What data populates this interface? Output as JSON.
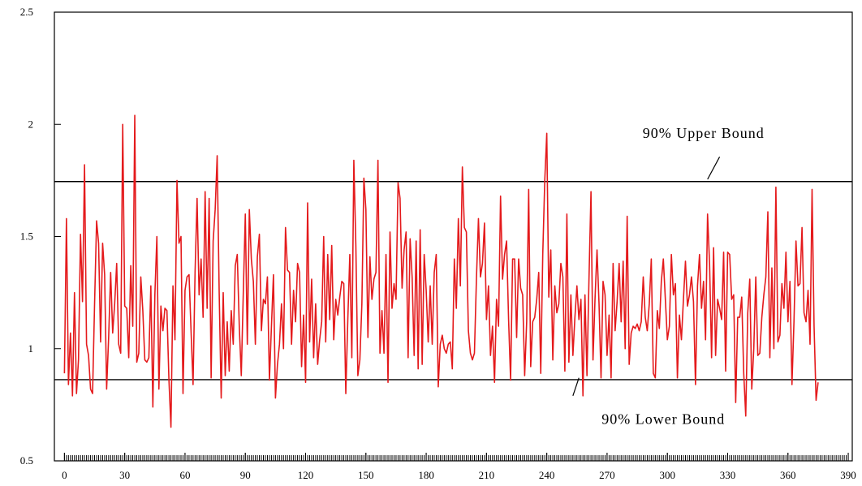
{
  "chart_data": {
    "type": "line",
    "title": "",
    "xlabel": "",
    "ylabel": "",
    "xlim": [
      -5,
      392
    ],
    "ylim": [
      0.5,
      2.5
    ],
    "x_ticks": [
      "0",
      "30",
      "60",
      "90",
      "120",
      "150",
      "180",
      "210",
      "240",
      "270",
      "300",
      "330",
      "360",
      "390"
    ],
    "y_ticks": [
      "0.5",
      "1",
      "1.5",
      "2",
      "2.5"
    ],
    "grid": false,
    "legend": "none",
    "series": [
      {
        "color": "#e41a1c",
        "x_start": 0,
        "x_step": 1,
        "values": [
          0.89,
          1.58,
          0.84,
          1.07,
          0.79,
          1.25,
          0.8,
          0.95,
          1.51,
          1.21,
          1.82,
          1.02,
          0.97,
          0.82,
          0.8,
          1.2,
          1.57,
          1.47,
          1.03,
          1.47,
          1.33,
          0.82,
          1.05,
          1.34,
          1.07,
          1.2,
          1.38,
          1.02,
          0.98,
          2.0,
          1.19,
          1.18,
          0.96,
          1.37,
          1.1,
          2.04,
          0.94,
          0.98,
          1.32,
          1.17,
          0.95,
          0.94,
          0.96,
          1.28,
          0.74,
          1.24,
          1.5,
          0.82,
          1.19,
          1.08,
          1.18,
          1.17,
          0.86,
          0.65,
          1.28,
          1.04,
          1.75,
          1.47,
          1.5,
          0.8,
          1.26,
          1.32,
          1.33,
          1.08,
          0.84,
          1.34,
          1.67,
          1.24,
          1.4,
          1.14,
          1.7,
          1.18,
          1.67,
          0.87,
          1.48,
          1.62,
          1.86,
          1.25,
          0.78,
          1.25,
          0.88,
          1.12,
          0.9,
          1.17,
          1.02,
          1.37,
          1.42,
          1.1,
          0.88,
          1.25,
          1.6,
          1.02,
          1.62,
          1.4,
          1.3,
          1.02,
          1.41,
          1.51,
          1.08,
          1.22,
          1.2,
          1.32,
          0.86,
          1.1,
          1.33,
          0.78,
          0.93,
          1.02,
          1.2,
          1.0,
          1.54,
          1.35,
          1.34,
          1.02,
          1.26,
          1.12,
          1.38,
          1.34,
          0.92,
          1.15,
          0.85,
          1.65,
          1.03,
          1.31,
          0.96,
          1.2,
          0.93,
          1.04,
          1.12,
          1.5,
          1.03,
          1.42,
          1.13,
          1.46,
          1.04,
          1.22,
          1.15,
          1.23,
          1.3,
          1.29,
          0.8,
          1.13,
          1.42,
          0.96,
          1.84,
          1.46,
          0.88,
          0.95,
          1.2,
          1.76,
          1.62,
          1.05,
          1.41,
          1.22,
          1.31,
          1.34,
          1.84,
          0.98,
          1.17,
          0.98,
          1.42,
          0.85,
          1.52,
          1.18,
          1.29,
          1.22,
          1.74,
          1.67,
          1.27,
          1.44,
          1.52,
          0.96,
          1.49,
          1.32,
          0.97,
          1.48,
          0.91,
          1.53,
          0.93,
          1.42,
          1.26,
          1.03,
          1.28,
          1.02,
          1.34,
          1.42,
          0.83,
          1.02,
          1.06,
          1.0,
          0.98,
          1.02,
          1.03,
          0.91,
          1.4,
          1.18,
          1.58,
          1.28,
          1.81,
          1.54,
          1.52,
          1.08,
          0.98,
          0.95,
          0.98,
          1.31,
          1.58,
          1.32,
          1.38,
          1.56,
          1.13,
          1.28,
          0.97,
          1.1,
          0.85,
          1.22,
          1.1,
          1.68,
          1.31,
          1.42,
          1.48,
          1.13,
          0.86,
          1.4,
          1.4,
          1.05,
          1.4,
          1.27,
          1.24,
          0.88,
          1.12,
          1.71,
          0.92,
          1.12,
          1.14,
          1.22,
          1.34,
          0.89,
          1.42,
          1.75,
          1.96,
          1.23,
          1.44,
          0.95,
          1.28,
          1.16,
          1.2,
          1.38,
          1.32,
          0.9,
          1.6,
          0.94,
          1.24,
          0.97,
          1.14,
          1.28,
          1.13,
          1.22,
          0.79,
          1.24,
          0.88,
          1.31,
          1.7,
          0.95,
          1.22,
          1.44,
          1.2,
          0.87,
          1.3,
          1.24,
          0.97,
          1.15,
          0.87,
          1.38,
          1.08,
          1.21,
          1.38,
          1.12,
          1.39,
          1.0,
          1.59,
          0.93,
          1.07,
          1.1,
          1.09,
          1.11,
          1.08,
          1.12,
          1.32,
          1.14,
          1.08,
          1.2,
          1.4,
          0.89,
          0.87,
          1.17,
          1.09,
          1.3,
          1.4,
          1.22,
          1.04,
          1.1,
          1.42,
          1.24,
          1.29,
          0.87,
          1.15,
          1.04,
          1.22,
          1.39,
          1.19,
          1.24,
          1.32,
          1.21,
          0.84,
          1.28,
          1.42,
          1.18,
          1.3,
          1.04,
          1.6,
          1.38,
          0.96,
          1.45,
          0.97,
          1.22,
          1.18,
          1.13,
          1.43,
          0.9,
          1.43,
          1.42,
          1.22,
          1.24,
          0.76,
          1.14,
          1.14,
          1.23,
          0.89,
          0.7,
          1.16,
          1.31,
          0.82,
          1.0,
          1.32,
          0.97,
          0.98,
          1.14,
          1.24,
          1.32,
          1.61,
          0.96,
          1.36,
          1.0,
          1.72,
          1.03,
          1.06,
          1.29,
          1.18,
          1.43,
          1.12,
          1.3,
          0.84,
          1.12,
          1.48,
          1.28,
          1.29,
          1.54,
          1.16,
          1.12,
          1.26,
          1.02,
          1.71,
          1.1,
          0.77,
          0.85
        ]
      },
      {
        "color": "#000000",
        "x": [
          -5,
          392
        ],
        "values": [
          1.745,
          1.745
        ]
      },
      {
        "color": "#000000",
        "x": [
          -5,
          392
        ],
        "values": [
          0.862,
          0.862
        ]
      }
    ],
    "annotations": [
      {
        "text": "90% Upper Bound",
        "x": 318,
        "y": 1.94,
        "pointer_to": [
          320,
          1.755
        ],
        "pointer_from": [
          326,
          1.855
        ]
      },
      {
        "text": "90% Lower Bound",
        "x": 298,
        "y": 0.665,
        "pointer_to": [
          256,
          0.87
        ],
        "pointer_from": [
          253,
          0.79
        ]
      }
    ]
  }
}
